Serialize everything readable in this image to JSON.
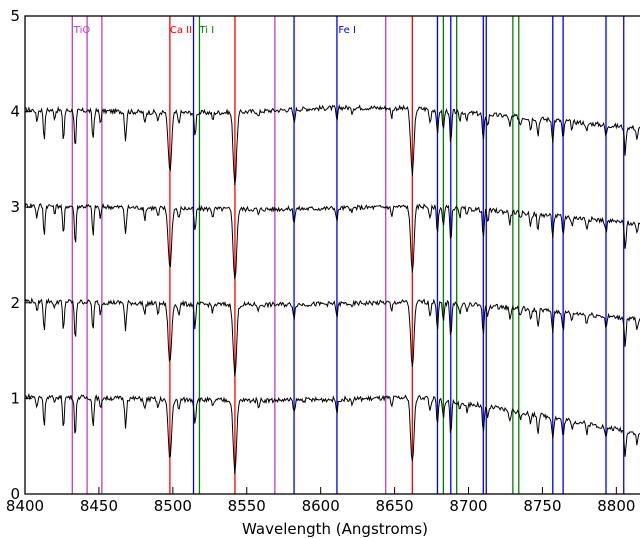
{
  "chart_data": {
    "type": "line",
    "title": "",
    "xlabel": "Wavelength (Angstroms)",
    "ylabel": "",
    "xlim": [
      8400,
      8820
    ],
    "ylim": [
      0,
      5
    ],
    "x_ticks": [
      8400,
      8450,
      8500,
      8550,
      8600,
      8650,
      8700,
      8750,
      8800
    ],
    "y_ticks": [
      0,
      1,
      2,
      3,
      4,
      5
    ],
    "grid": false,
    "line_groups": [
      {
        "name": "TiO",
        "color": "#bf3fbf",
        "label_x": 8433,
        "positions": [
          8432,
          8442,
          8452,
          8569,
          8644
        ]
      },
      {
        "name": "Ca II",
        "color": "#ff0000",
        "label_x": 8498,
        "positions": [
          8498,
          8542,
          8662
        ]
      },
      {
        "name": "Ti I",
        "color": "#008000",
        "label_x": 8518,
        "positions": [
          8518,
          8683,
          8692,
          8730,
          8734
        ]
      },
      {
        "name": "Fe I",
        "color": "#0000ff",
        "label_x": 8612,
        "positions": [
          8514,
          8582,
          8611,
          8679,
          8688,
          8710,
          8712,
          8757,
          8764,
          8793,
          8805
        ]
      }
    ],
    "spectra_offsets": [
      4,
      3,
      2,
      1
    ],
    "absorption_features": [
      {
        "x": 8408,
        "depth": 0.12
      },
      {
        "x": 8413,
        "depth": 0.3
      },
      {
        "x": 8420,
        "depth": 0.08
      },
      {
        "x": 8426,
        "depth": 0.32
      },
      {
        "x": 8434,
        "depth": 0.42
      },
      {
        "x": 8446,
        "depth": 0.3
      },
      {
        "x": 8451,
        "depth": 0.12
      },
      {
        "x": 8468,
        "depth": 0.3
      },
      {
        "x": 8481,
        "depth": 0.12
      },
      {
        "x": 8490,
        "depth": 0.1
      },
      {
        "x": 8498,
        "depth": 0.62
      },
      {
        "x": 8504,
        "depth": 0.12
      },
      {
        "x": 8515,
        "depth": 0.25
      },
      {
        "x": 8527,
        "depth": 0.08
      },
      {
        "x": 8542,
        "depth": 0.75
      },
      {
        "x": 8558,
        "depth": 0.06
      },
      {
        "x": 8582,
        "depth": 0.14
      },
      {
        "x": 8611,
        "depth": 0.14
      },
      {
        "x": 8621,
        "depth": 0.06
      },
      {
        "x": 8648,
        "depth": 0.1
      },
      {
        "x": 8662,
        "depth": 0.68
      },
      {
        "x": 8674,
        "depth": 0.14
      },
      {
        "x": 8679,
        "depth": 0.28
      },
      {
        "x": 8683,
        "depth": 0.2
      },
      {
        "x": 8688,
        "depth": 0.36
      },
      {
        "x": 8694,
        "depth": 0.1
      },
      {
        "x": 8699,
        "depth": 0.08
      },
      {
        "x": 8710,
        "depth": 0.3
      },
      {
        "x": 8713,
        "depth": 0.12
      },
      {
        "x": 8728,
        "depth": 0.12
      },
      {
        "x": 8735,
        "depth": 0.08
      },
      {
        "x": 8742,
        "depth": 0.12
      },
      {
        "x": 8747,
        "depth": 0.18
      },
      {
        "x": 8757,
        "depth": 0.22
      },
      {
        "x": 8764,
        "depth": 0.2
      },
      {
        "x": 8770,
        "depth": 0.08
      },
      {
        "x": 8780,
        "depth": 0.1
      },
      {
        "x": 8793,
        "depth": 0.12
      },
      {
        "x": 8806,
        "depth": 0.28
      },
      {
        "x": 8814,
        "depth": 0.12
      }
    ]
  }
}
